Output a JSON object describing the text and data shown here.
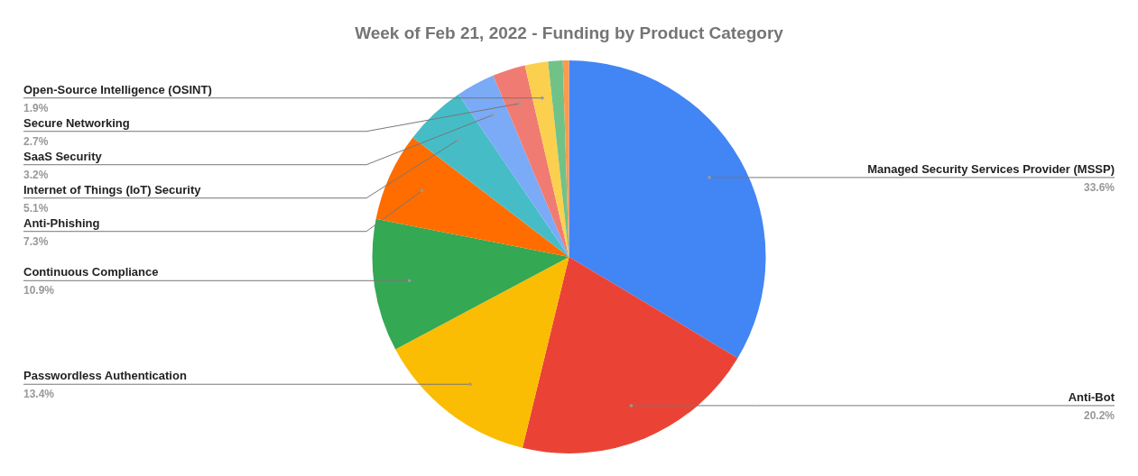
{
  "chart_data": {
    "type": "pie",
    "title": "Week of Feb 21, 2022 - Funding by Product Category",
    "categories": [
      "Managed Security Services Provider (MSSP)",
      "Anti-Bot",
      "Passwordless Authentication",
      "Continuous Compliance",
      "Anti-Phishing",
      "Internet of Things (IoT) Security",
      "SaaS Security",
      "Secure Networking",
      "Open-Source Intelligence (OSINT)",
      null,
      null
    ],
    "values": [
      33.6,
      20.2,
      13.4,
      10.9,
      7.3,
      5.1,
      3.2,
      2.7,
      1.9,
      1.2,
      0.5
    ],
    "value_labels": [
      "33.6%",
      "20.2%",
      "13.4%",
      "10.9%",
      "7.3%",
      "5.1%",
      "3.2%",
      "2.7%",
      "1.9%",
      null,
      null
    ],
    "colors": [
      "#4285f4",
      "#ea4335",
      "#fbbc04",
      "#34a853",
      "#ff6d01",
      "#46bdc6",
      "#7baaf7",
      "#f07b72",
      "#fcd04f",
      "#71c287",
      "#ff994d"
    ]
  }
}
